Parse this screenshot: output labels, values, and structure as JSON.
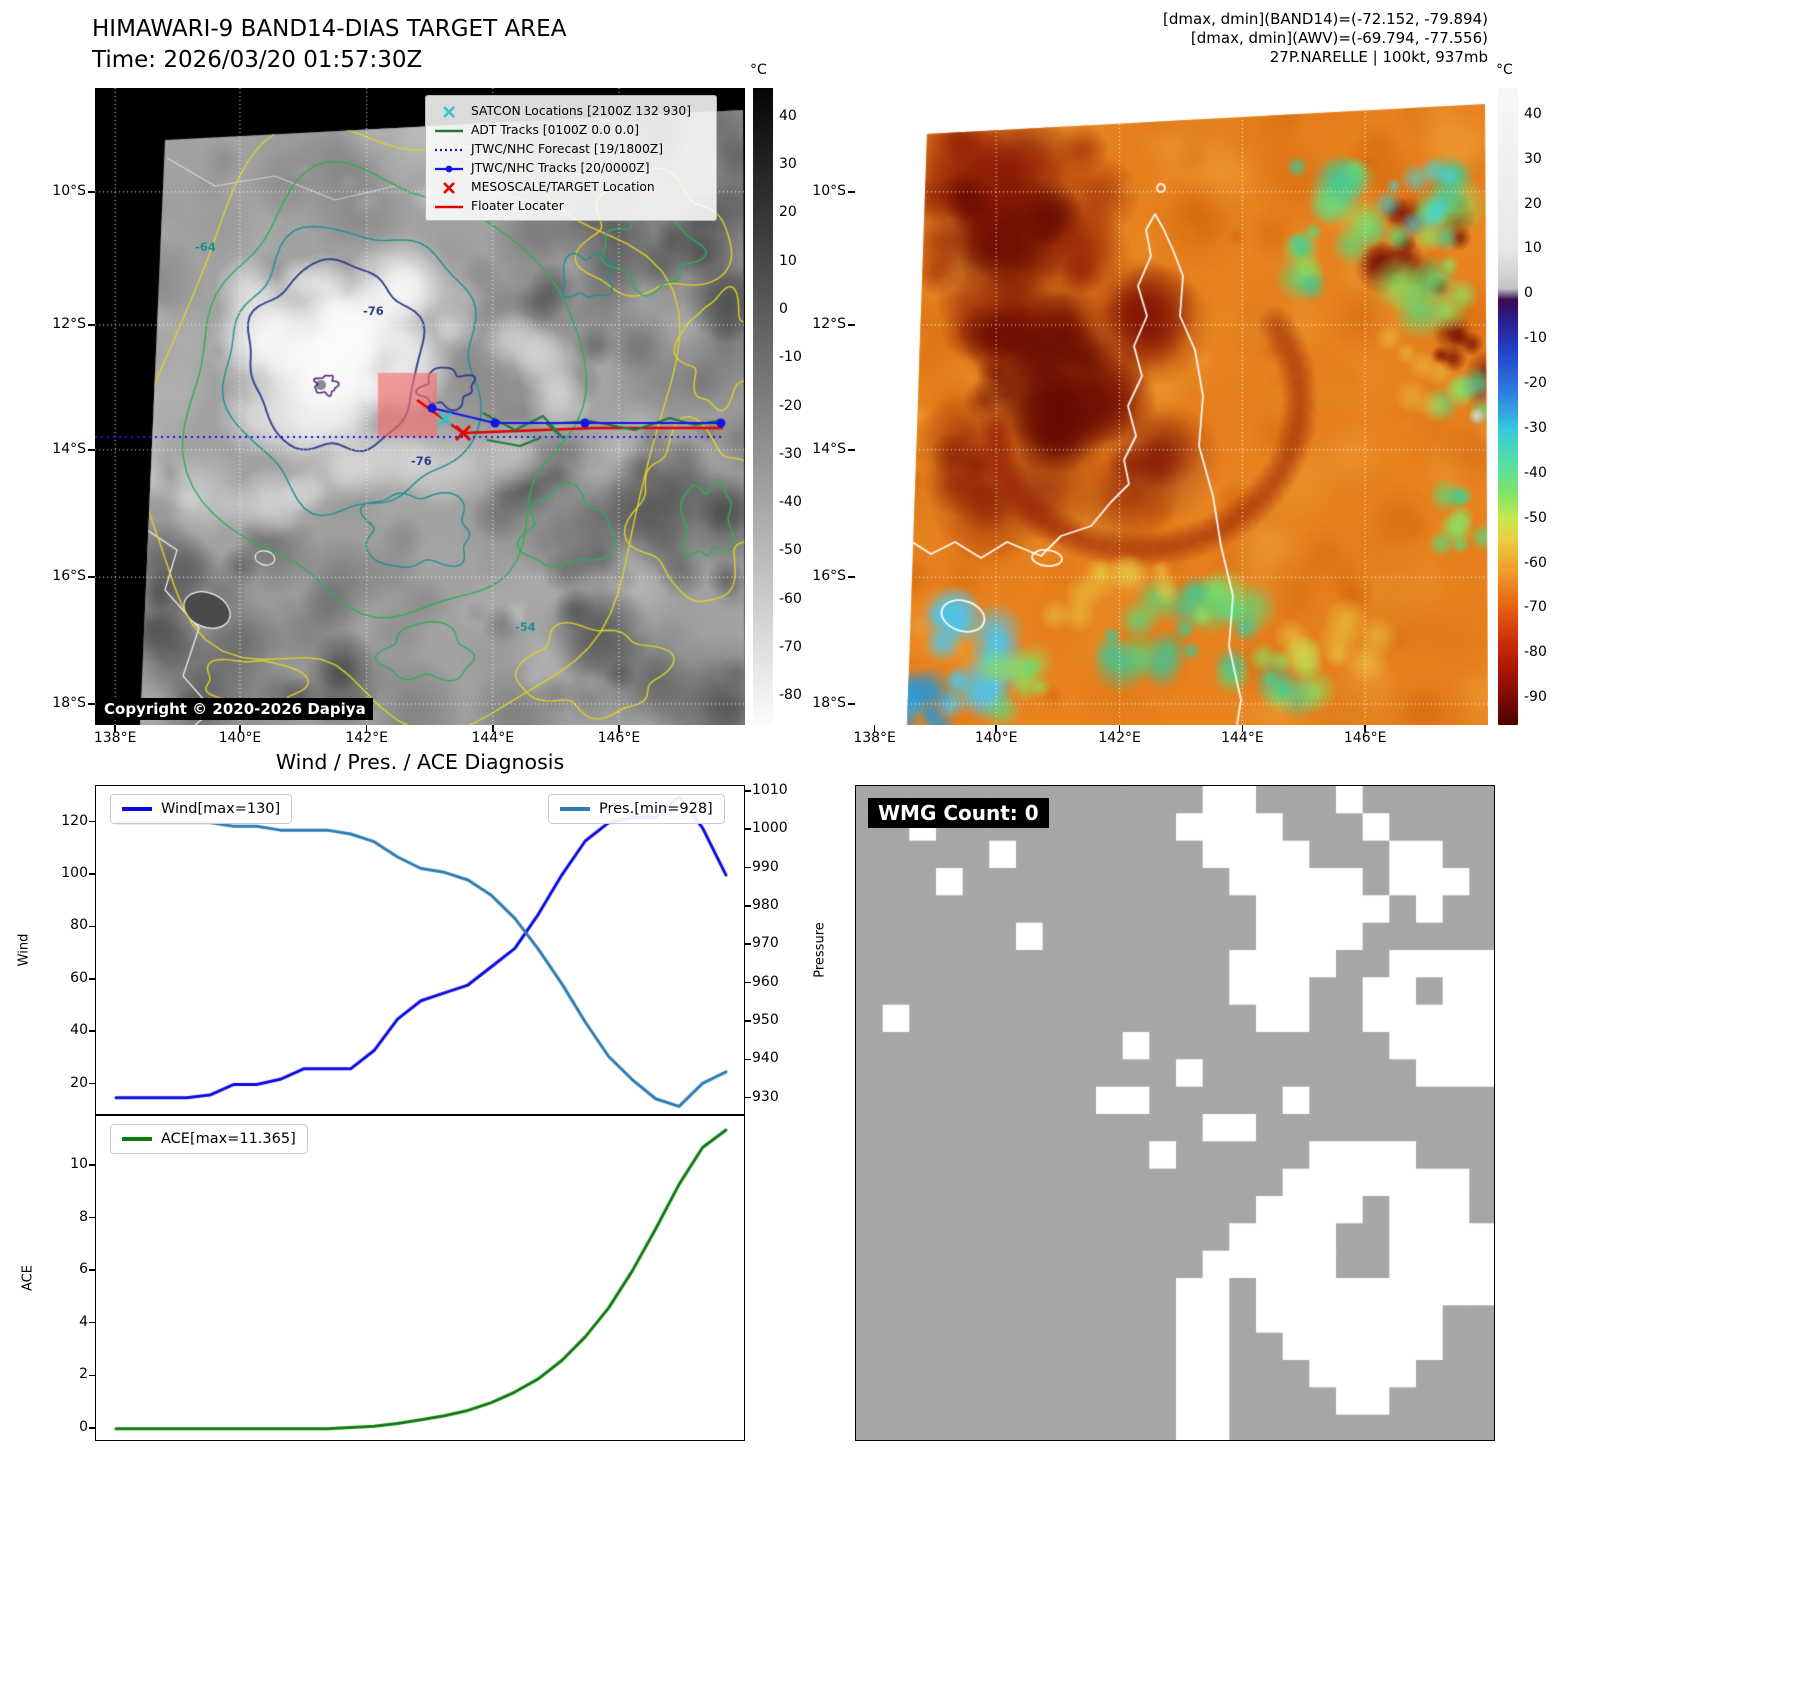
{
  "band14": {
    "title": "HIMAWARI-9 BAND14-DIAS TARGET AREA",
    "time_line": "Time: 2026/03/20 01:57:30Z",
    "copyright": "Copyright © 2020-2026 Dapiya",
    "colorbar_unit": "°C",
    "colorbar_ticks": [
      40,
      30,
      20,
      10,
      0,
      -10,
      -20,
      -30,
      -40,
      -50,
      -60,
      -70,
      -80
    ],
    "lat_ticks": [
      "10°S",
      "12°S",
      "14°S",
      "16°S",
      "18°S"
    ],
    "lon_ticks": [
      "138°E",
      "140°E",
      "142°E",
      "144°E",
      "146°E"
    ],
    "legend": [
      {
        "label": "SATCON Locations [2100Z 132 930]",
        "marker": "x",
        "color": "#2ec8c8"
      },
      {
        "label": "ADT Tracks [0100Z 0.0 0.0]",
        "marker": "line",
        "color": "#207840"
      },
      {
        "label": "JTWC/NHC Forecast [19/1800Z]",
        "marker": "dotted",
        "color": "#1414e6"
      },
      {
        "label": "JTWC/NHC Tracks [20/0000Z]",
        "marker": "line-dot",
        "color": "#1414e6"
      },
      {
        "label": "MESOSCALE/TARGET Location",
        "marker": "x",
        "color": "#e60000"
      },
      {
        "label": "Floater Locater",
        "marker": "line",
        "color": "#e60000"
      }
    ],
    "contour_labels": [
      {
        "text": "-64",
        "color": "#1f9090"
      },
      {
        "text": "-76",
        "color": "#2d3c8c"
      },
      {
        "text": "-76",
        "color": "#2d3c8c"
      },
      {
        "text": "-54",
        "color": "#1f9090"
      }
    ]
  },
  "awv": {
    "header_lines": [
      "[dmax, dmin](BAND14)=(-72.152, -79.894)",
      "[dmax, dmin](AWV)=(-69.794, -77.556)",
      "27P.NARELLE | 100kt, 937mb"
    ],
    "colorbar_unit": "°C",
    "colorbar_ticks": [
      40,
      30,
      20,
      10,
      0,
      -10,
      -20,
      -30,
      -40,
      -50,
      -60,
      -70,
      -80,
      -90
    ],
    "lat_ticks": [
      "10°S",
      "12°S",
      "14°S",
      "16°S",
      "18°S"
    ],
    "lon_ticks": [
      "138°E",
      "140°E",
      "142°E",
      "144°E",
      "146°E"
    ]
  },
  "diagnosis_title": "Wind / Pres. / ACE Diagnosis",
  "chart_data": [
    {
      "type": "line",
      "title": "Wind / Pres. / ACE Diagnosis",
      "x": [
        0,
        1,
        2,
        3,
        4,
        5,
        6,
        7,
        8,
        9,
        10,
        11,
        12,
        13,
        14,
        15,
        16,
        17,
        18,
        19,
        20,
        21,
        22,
        23,
        24,
        25,
        26
      ],
      "series": [
        {
          "name": "Wind[max=130]",
          "yaxis": "left",
          "color": "#0a0ae0",
          "width": 3,
          "values": [
            15,
            15,
            15,
            15,
            16,
            20,
            20,
            22,
            26,
            26,
            26,
            33,
            45,
            52,
            55,
            58,
            65,
            72,
            85,
            100,
            113,
            120,
            122,
            122,
            130,
            118,
            100
          ]
        },
        {
          "name": "Pres.[min=928]",
          "yaxis": "right",
          "color": "#2b7cb4",
          "width": 3,
          "values": [
            1002,
            1002,
            1002,
            1002,
            1002,
            1001,
            1001,
            1000,
            1000,
            1000,
            999,
            997,
            993,
            990,
            989,
            987,
            983,
            977,
            969,
            960,
            950,
            941,
            935,
            930,
            928,
            934,
            937
          ]
        }
      ],
      "ylabel_left": "Wind",
      "ylabel_right": "Pressure",
      "yticks_left": [
        20,
        40,
        60,
        80,
        100,
        120
      ],
      "yticks_right": [
        930,
        940,
        950,
        960,
        970,
        980,
        990,
        1000,
        1010
      ],
      "ylim_left": [
        8,
        134
      ],
      "ylim_right": [
        925.5,
        1011.5
      ],
      "grid": false,
      "legend_position": "upper-left / upper-right"
    },
    {
      "type": "line",
      "x": [
        0,
        1,
        2,
        3,
        4,
        5,
        6,
        7,
        8,
        9,
        10,
        11,
        12,
        13,
        14,
        15,
        16,
        17,
        18,
        19,
        20,
        21,
        22,
        23,
        24,
        25,
        26
      ],
      "series": [
        {
          "name": "ACE[max=11.365]",
          "yaxis": "left",
          "color": "#0b7a0b",
          "width": 3,
          "values": [
            0,
            0,
            0,
            0,
            0,
            0,
            0,
            0,
            0,
            0,
            0.05,
            0.1,
            0.2,
            0.35,
            0.5,
            0.7,
            1.0,
            1.4,
            1.9,
            2.6,
            3.5,
            4.6,
            6.0,
            7.6,
            9.3,
            10.7,
            11.365
          ]
        }
      ],
      "ylabel_left": "ACE",
      "yticks_left": [
        0,
        2,
        4,
        6,
        8,
        10
      ],
      "ylim_left": [
        -0.5,
        11.9
      ],
      "grid": false,
      "legend_position": "upper-left"
    }
  ],
  "wmg": {
    "label": "WMG Count: 0",
    "gray": "#a6a6a6",
    "white": "#ffffff",
    "grid": [
      ".............WW...W.....",
      "..W.........WWWW...W....",
      ".....W.......WWWW...WW..",
      "...W..........WWWWW.WWW.",
      "...............WWWWW.W..",
      "......W........WWWW.....",
      "..............WWWW..WWWW",
      "..............WWW..WW.WW",
      ".W.............WW..WWWWW",
      "..........W.........WWWW",
      "............W........WWW",
      ".........WW.....W.......",
      ".............WW.........",
      "...........W.....WWWW...",
      "................WWWWWWW.",
      "...............WWWW.WWW.",
      "..............WWWW..WWWW",
      ".............WWWWW..WWWW",
      "............WW.WWWWWWWWW",
      "............WW.WWWWWWW..",
      "............WW..WWWWWW..",
      "............WW...WWWW...",
      "............WW....WW....",
      "............WW.........."
    ]
  }
}
